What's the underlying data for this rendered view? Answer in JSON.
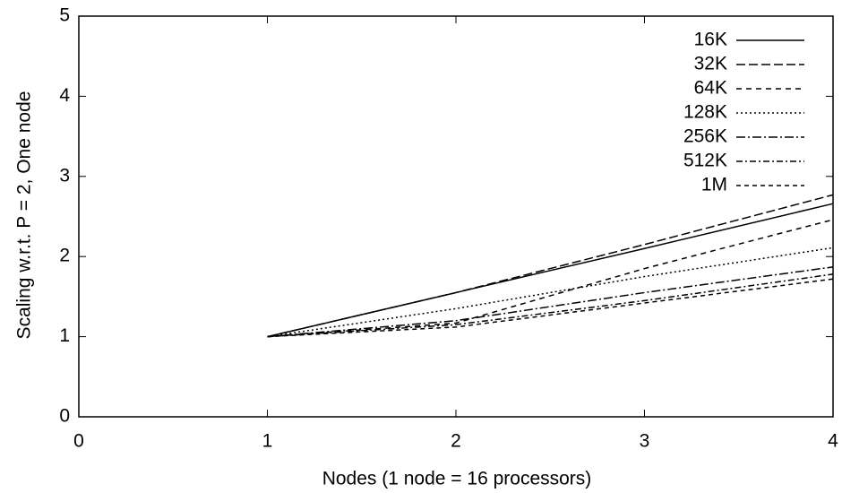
{
  "chart_data": {
    "type": "line",
    "x_label": "Nodes (1 node = 16 processors)",
    "y_label": "Scaling w.r.t. P = 2, One node",
    "x": [
      1,
      2,
      3,
      4
    ],
    "series": [
      {
        "name": "16K",
        "color": "#000000",
        "values": [
          1,
          1.55,
          2.1,
          2.66
        ]
      },
      {
        "name": "32K",
        "color": "#000000",
        "values": [
          1,
          1.55,
          2.15,
          2.77
        ]
      },
      {
        "name": "64K",
        "color": "#000000",
        "values": [
          1,
          1.17,
          1.85,
          2.46
        ]
      },
      {
        "name": "128K",
        "color": "#000000",
        "values": [
          1,
          1.35,
          1.75,
          2.11
        ]
      },
      {
        "name": "256K",
        "color": "#000000",
        "values": [
          1,
          1.2,
          1.55,
          1.87
        ]
      },
      {
        "name": "512K",
        "color": "#000000",
        "values": [
          1,
          1.15,
          1.45,
          1.78
        ]
      },
      {
        "name": "1M",
        "color": "#000000",
        "values": [
          1,
          1.12,
          1.42,
          1.72
        ]
      }
    ],
    "xlim": [
      0,
      4
    ],
    "xticks": [
      0,
      1,
      2,
      3,
      4
    ],
    "ylim": [
      0,
      5
    ],
    "yticks": [
      0,
      1,
      2,
      3,
      4,
      5
    ],
    "legend": "upper right",
    "grid": false
  }
}
